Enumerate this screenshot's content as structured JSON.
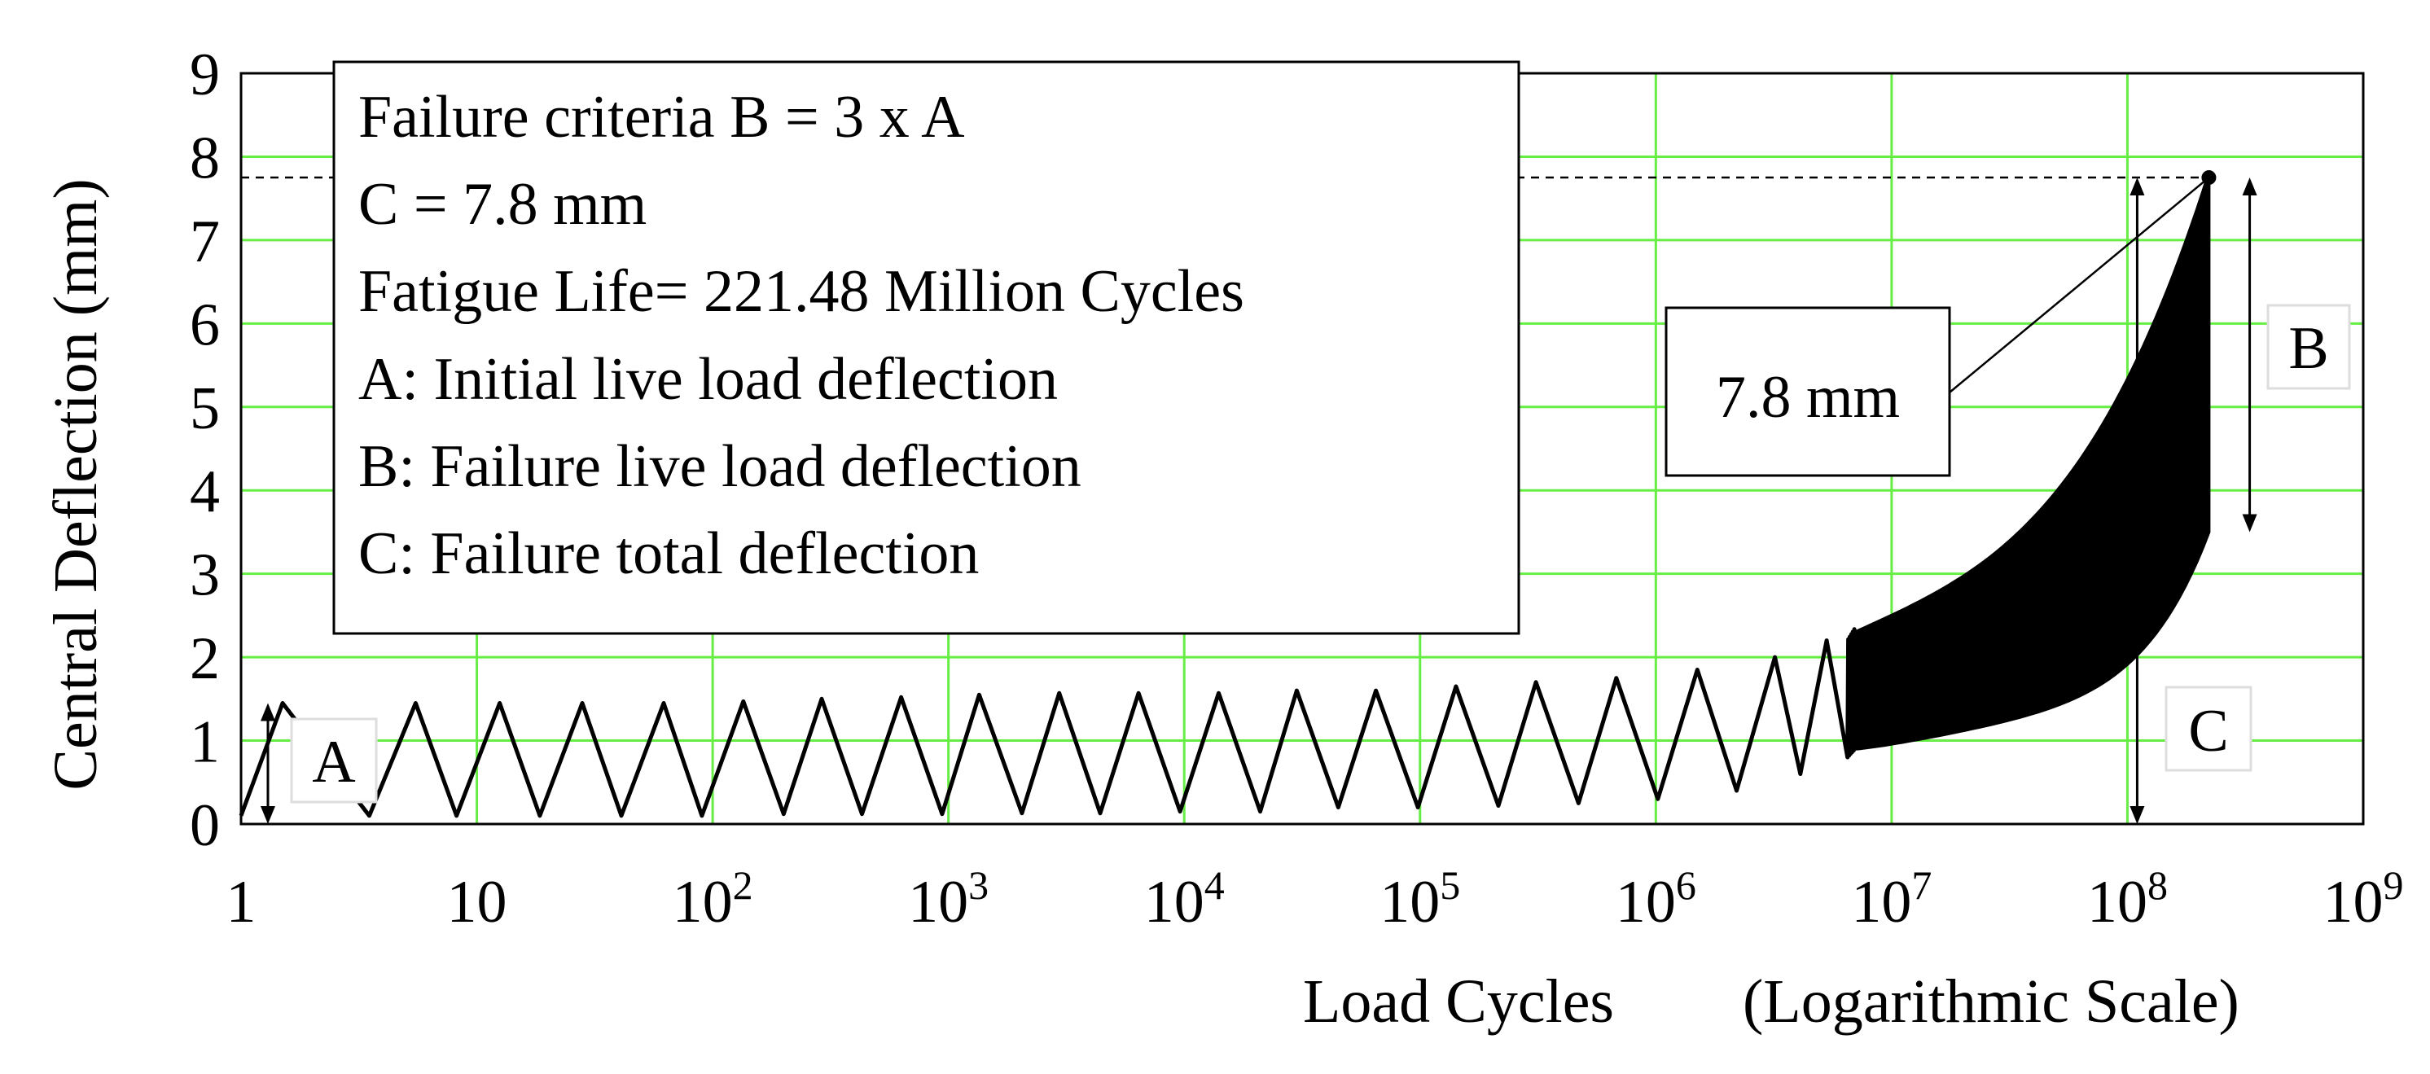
{
  "chart_data": {
    "type": "line",
    "xlabel": "Load Cycles",
    "xlabel_note": "(Logarithmic Scale)",
    "ylabel": "Central Deflection (mm)",
    "x_scale": "log",
    "xlim": [
      1,
      1000000000
    ],
    "ylim": [
      0,
      9
    ],
    "grid": true,
    "grid_color": "#66ee44",
    "line_color": "#000000",
    "x_ticks": [
      {
        "value": 1,
        "base": "1",
        "exp": ""
      },
      {
        "value": 10,
        "base": "10",
        "exp": ""
      },
      {
        "value": 100,
        "base": "10",
        "exp": "2"
      },
      {
        "value": 1000,
        "base": "10",
        "exp": "3"
      },
      {
        "value": 10000,
        "base": "10",
        "exp": "4"
      },
      {
        "value": 100000,
        "base": "10",
        "exp": "5"
      },
      {
        "value": 1000000,
        "base": "10",
        "exp": "6"
      },
      {
        "value": 10000000,
        "base": "10",
        "exp": "7"
      },
      {
        "value": 100000000,
        "base": "10",
        "exp": "8"
      },
      {
        "value": 1000000000,
        "base": "10",
        "exp": "9"
      }
    ],
    "y_ticks": [
      0,
      1,
      2,
      3,
      4,
      5,
      6,
      7,
      8,
      9
    ],
    "series": [
      {
        "peaks": [
          {
            "x": 1.5,
            "y": 1.45
          },
          {
            "x": 5.5,
            "y": 1.45
          },
          {
            "x": 12.5,
            "y": 1.45
          },
          {
            "x": 28,
            "y": 1.45
          },
          {
            "x": 62,
            "y": 1.45
          },
          {
            "x": 135,
            "y": 1.47
          },
          {
            "x": 290,
            "y": 1.5
          },
          {
            "x": 630,
            "y": 1.52
          },
          {
            "x": 1350,
            "y": 1.55
          },
          {
            "x": 2950,
            "y": 1.57
          },
          {
            "x": 6400,
            "y": 1.57
          },
          {
            "x": 14000,
            "y": 1.57
          },
          {
            "x": 30000,
            "y": 1.6
          },
          {
            "x": 65000,
            "y": 1.6
          },
          {
            "x": 142000,
            "y": 1.65
          },
          {
            "x": 310000,
            "y": 1.7
          },
          {
            "x": 680000,
            "y": 1.75
          },
          {
            "x": 1500000,
            "y": 1.85
          },
          {
            "x": 3200000,
            "y": 2.0
          },
          {
            "x": 5300000,
            "y": 2.2
          }
        ],
        "troughs": [
          {
            "x": 1,
            "y": 0.1
          },
          {
            "x": 3.5,
            "y": 0.1
          },
          {
            "x": 8.2,
            "y": 0.1
          },
          {
            "x": 18.5,
            "y": 0.1
          },
          {
            "x": 41,
            "y": 0.1
          },
          {
            "x": 90,
            "y": 0.1
          },
          {
            "x": 200,
            "y": 0.12
          },
          {
            "x": 430,
            "y": 0.12
          },
          {
            "x": 940,
            "y": 0.12
          },
          {
            "x": 2050,
            "y": 0.13
          },
          {
            "x": 4400,
            "y": 0.13
          },
          {
            "x": 9600,
            "y": 0.15
          },
          {
            "x": 21000,
            "y": 0.15
          },
          {
            "x": 45000,
            "y": 0.2
          },
          {
            "x": 98000,
            "y": 0.2
          },
          {
            "x": 215000,
            "y": 0.22
          },
          {
            "x": 470000,
            "y": 0.25
          },
          {
            "x": 1020000,
            "y": 0.3
          },
          {
            "x": 2200000,
            "y": 0.4
          },
          {
            "x": 4100000,
            "y": 0.6
          },
          {
            "x": 6500000,
            "y": 0.8
          }
        ],
        "dense_band": {
          "x_start": 7000000,
          "x_end": 221480000,
          "upper_start": 2.3,
          "upper_end": 7.8,
          "lower_start": 0.9,
          "lower_end": 3.5
        }
      }
    ],
    "legend_box": [
      "Failure criteria B = 3 x A",
      "C = 7.8 mm",
      "Fatigue Life= 221.48 Million Cycles",
      "A: Initial live load deflection",
      "B: Failure live load deflection",
      "C: Failure total deflection"
    ],
    "annotations": {
      "callout_label": "7.8 mm",
      "failure_point": {
        "x": 221480000,
        "y": 7.75
      },
      "A": {
        "label": "A",
        "x": 1.3,
        "y_from": 0,
        "y_to": 1.45
      },
      "B": {
        "label": "B",
        "x": 330000000,
        "y_from": 3.5,
        "y_to": 7.75
      },
      "C": {
        "label": "C",
        "x": 110000000,
        "y_from": 0,
        "y_to": 7.75
      }
    }
  }
}
